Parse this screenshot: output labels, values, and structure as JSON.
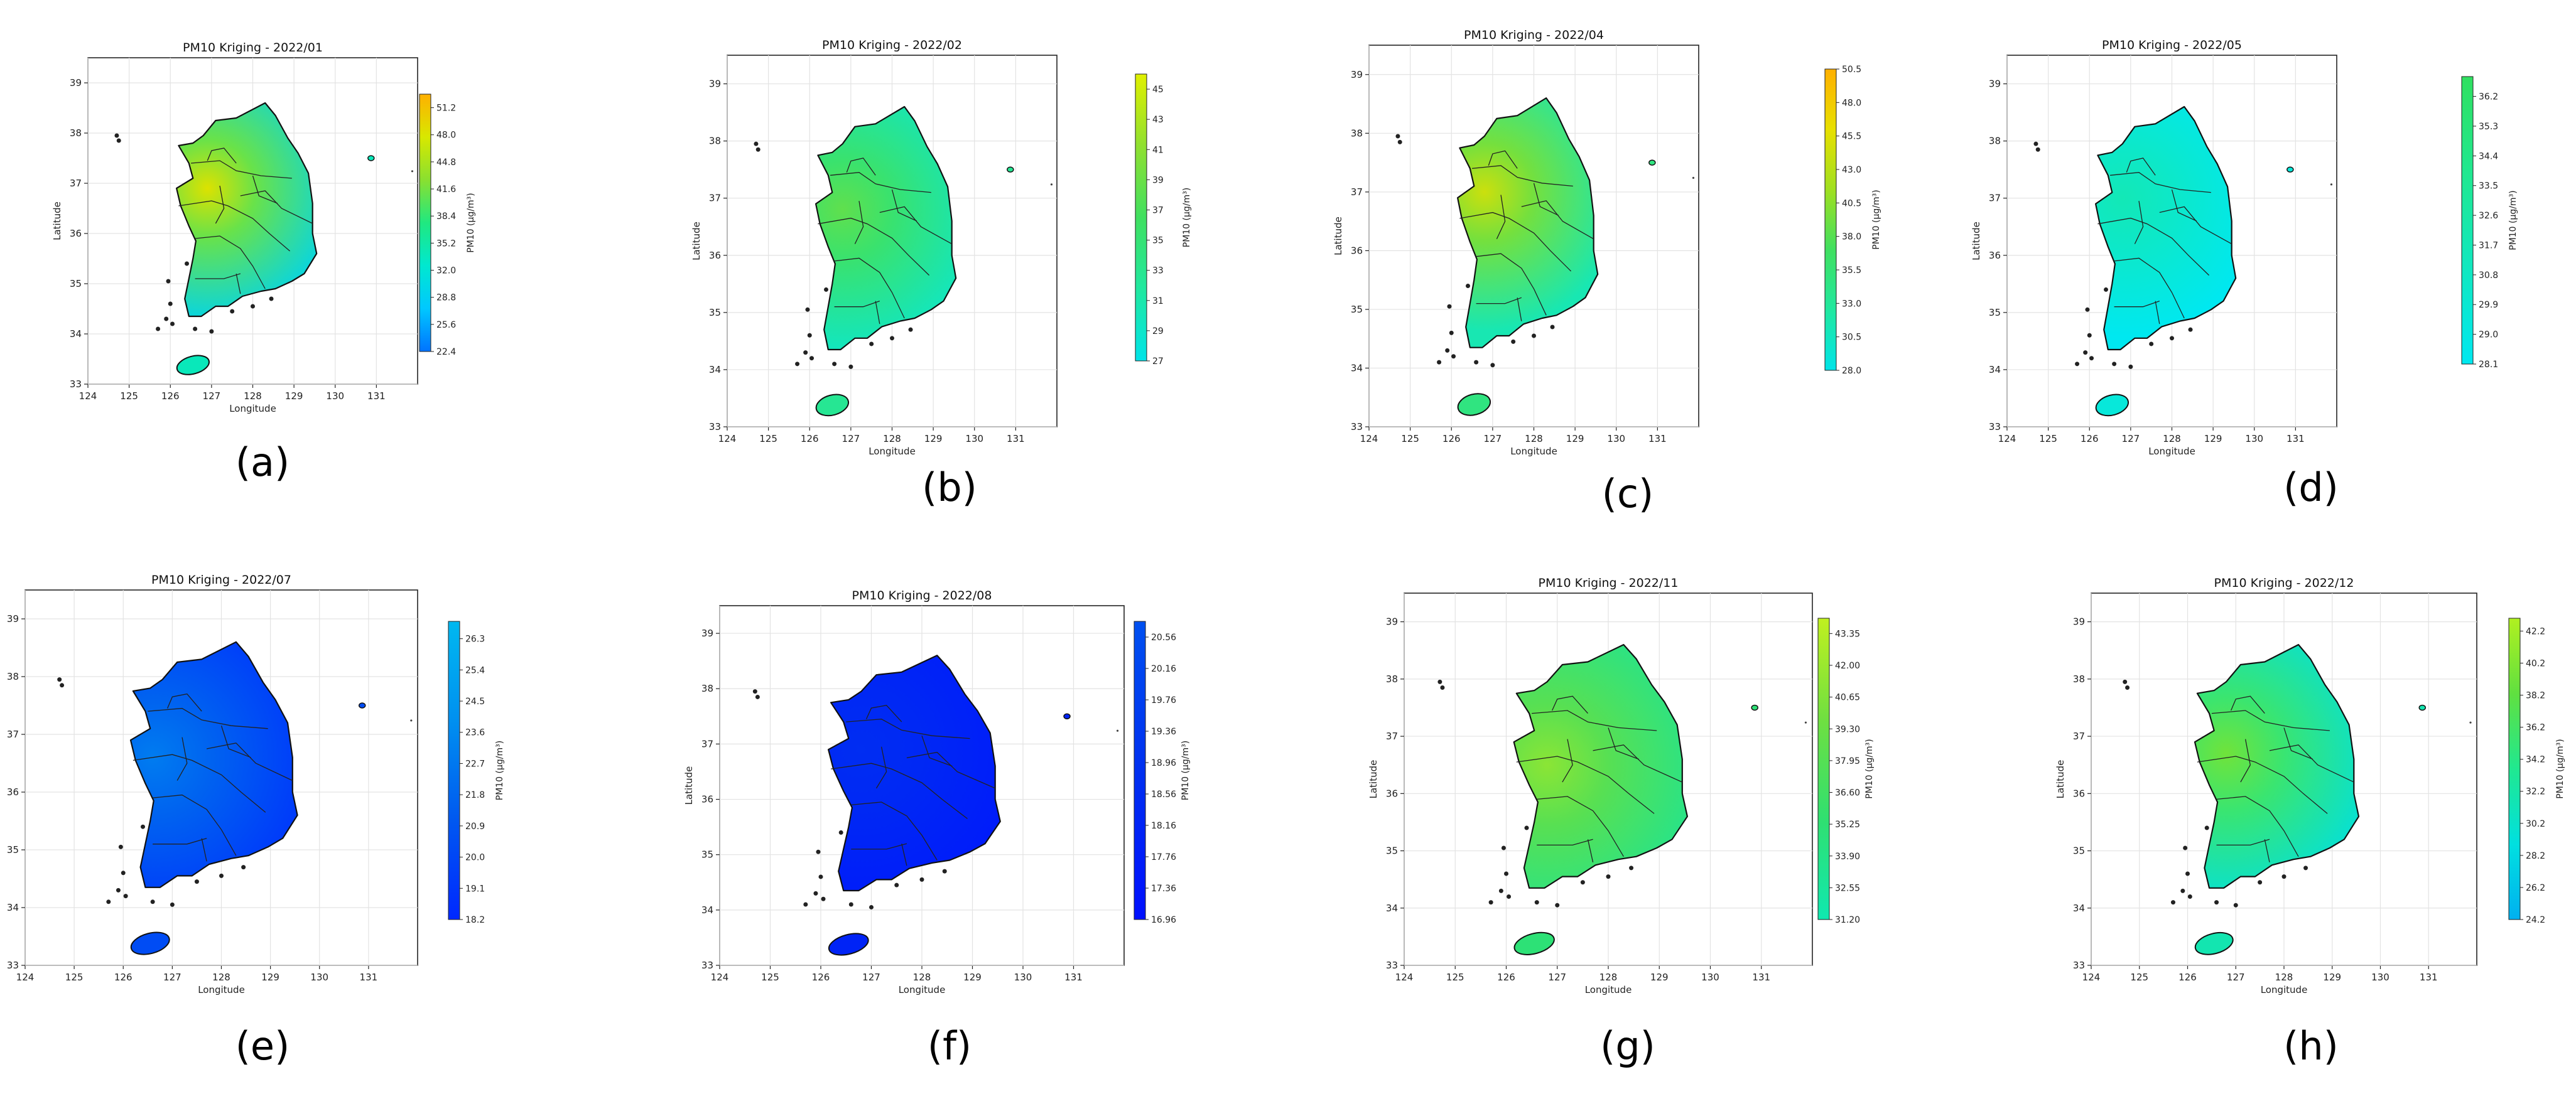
{
  "figure": {
    "panels": [
      {
        "letter": "a",
        "title": "PM10 Kriging - 2022/01"
      },
      {
        "letter": "b",
        "title": "PM10 Kriging - 2022/02"
      },
      {
        "letter": "c",
        "title": "PM10 Kriging - 2022/04"
      },
      {
        "letter": "d",
        "title": "PM10 Kriging - 2022/05"
      },
      {
        "letter": "e",
        "title": "PM10 Kriging - 2022/07"
      },
      {
        "letter": "f",
        "title": "PM10 Kriging - 2022/08"
      },
      {
        "letter": "g",
        "title": "PM10 Kriging - 2022/11"
      },
      {
        "letter": "h",
        "title": "PM10 Kriging - 2022/12"
      }
    ]
  },
  "chart_data": [
    {
      "type": "heatmap",
      "title": "PM10 Kriging - 2022/01",
      "xlabel": "Longitude",
      "ylabel": "Latitude",
      "xticks": [
        "124",
        "125",
        "126",
        "127",
        "128",
        "129",
        "130",
        "131"
      ],
      "yticks": [
        "33",
        "34",
        "35",
        "36",
        "37",
        "38",
        "39"
      ],
      "xlim": [
        124,
        132
      ],
      "ylim": [
        33,
        39.5
      ],
      "grid": true,
      "colorbar_label": "PM10 (µg/m³)",
      "colorbar_ticks": [
        "22.4",
        "25.6",
        "28.8",
        "32.0",
        "35.2",
        "38.4",
        "41.6",
        "44.8",
        "48.0",
        "51.2"
      ],
      "colorbar_range": [
        22.4,
        52.8
      ],
      "colormap": [
        "#0073ff",
        "#00c8ff",
        "#00e8d0",
        "#20e880",
        "#8ae030",
        "#d8e800",
        "#ffb000"
      ],
      "hotspot": {
        "lon": 126.9,
        "lat": 36.9
      },
      "base_level": 0.38,
      "peak_level": 0.85,
      "annotation": "(a)"
    },
    {
      "type": "heatmap",
      "title": "PM10 Kriging - 2022/02",
      "xlabel": "Longitude",
      "ylabel": "Latitude",
      "xticks": [
        "124",
        "125",
        "126",
        "127",
        "128",
        "129",
        "130",
        "131"
      ],
      "yticks": [
        "33",
        "34",
        "35",
        "36",
        "37",
        "38",
        "39"
      ],
      "xlim": [
        124,
        132
      ],
      "ylim": [
        33,
        39.5
      ],
      "grid": true,
      "colorbar_label": "PM10 (µg/m³)",
      "colorbar_ticks": [
        "27",
        "29",
        "31",
        "33",
        "35",
        "37",
        "39",
        "41",
        "43",
        "45"
      ],
      "colorbar_range": [
        27,
        46
      ],
      "colormap": [
        "#00e4e8",
        "#20e8a0",
        "#40e060",
        "#90e030",
        "#e0f000"
      ],
      "hotspot": {
        "lon": 126.8,
        "lat": 36.8
      },
      "base_level": 0.3,
      "peak_level": 0.6,
      "annotation": "(b)"
    },
    {
      "type": "heatmap",
      "title": "PM10 Kriging - 2022/04",
      "xlabel": "Longitude",
      "ylabel": "Latitude",
      "xticks": [
        "124",
        "125",
        "126",
        "127",
        "128",
        "129",
        "130",
        "131"
      ],
      "yticks": [
        "33",
        "34",
        "35",
        "36",
        "37",
        "38",
        "39"
      ],
      "xlim": [
        124,
        132
      ],
      "ylim": [
        33,
        39.5
      ],
      "grid": true,
      "colorbar_label": "PM10 (µg/m³)",
      "colorbar_ticks": [
        "28.0",
        "30.5",
        "33.0",
        "35.5",
        "38.0",
        "40.5",
        "43.0",
        "45.5",
        "48.0",
        "50.5"
      ],
      "colorbar_range": [
        28.0,
        50.5
      ],
      "colormap": [
        "#00e4e8",
        "#20e8a0",
        "#40e060",
        "#a0e020",
        "#e8e000",
        "#ffb000"
      ],
      "hotspot": {
        "lon": 126.8,
        "lat": 37.0
      },
      "base_level": 0.3,
      "peak_level": 0.72,
      "annotation": "(c)"
    },
    {
      "type": "heatmap",
      "title": "PM10 Kriging - 2022/05",
      "xlabel": "Longitude",
      "ylabel": "Latitude",
      "xticks": [
        "124",
        "125",
        "126",
        "127",
        "128",
        "129",
        "130",
        "131"
      ],
      "yticks": [
        "33",
        "34",
        "35",
        "36",
        "37",
        "38",
        "39"
      ],
      "xlim": [
        124,
        132
      ],
      "ylim": [
        33,
        39.5
      ],
      "grid": true,
      "colorbar_label": "PM10 (µg/m³)",
      "colorbar_ticks": [
        "28.1",
        "29.0",
        "29.9",
        "30.8",
        "31.7",
        "32.6",
        "33.5",
        "34.4",
        "35.3",
        "36.2"
      ],
      "colorbar_range": [
        28.1,
        36.8
      ],
      "colormap": [
        "#00e8f0",
        "#10e8c0",
        "#20e890",
        "#30e060"
      ],
      "hotspot": {
        "lon": 126.8,
        "lat": 37.0
      },
      "base_level": 0.15,
      "peak_level": 0.4,
      "annotation": "(d)"
    },
    {
      "type": "heatmap",
      "title": "PM10 Kriging - 2022/07",
      "xlabel": "Longitude",
      "ylabel": "Latitude",
      "xticks": [
        "124",
        "125",
        "126",
        "127",
        "128",
        "129",
        "130",
        "131"
      ],
      "yticks": [
        "33",
        "34",
        "35",
        "36",
        "37",
        "38",
        "39"
      ],
      "xlim": [
        124,
        132
      ],
      "ylim": [
        33,
        39.5
      ],
      "grid": true,
      "colorbar_label": "PM10 (µg/m³)",
      "colorbar_ticks": [
        "18.2",
        "19.1",
        "20.0",
        "20.9",
        "21.8",
        "22.7",
        "23.6",
        "24.5",
        "25.4",
        "26.3"
      ],
      "colorbar_range": [
        18.2,
        26.8
      ],
      "colormap": [
        "#0028ff",
        "#0058f0",
        "#0090f0",
        "#00b8f0"
      ],
      "hotspot": {
        "lon": 126.6,
        "lat": 36.6
      },
      "base_level": 0.25,
      "peak_level": 0.55,
      "annotation": "(e)"
    },
    {
      "type": "heatmap",
      "title": "PM10 Kriging - 2022/08",
      "xlabel": "Longitude",
      "ylabel": "Latitude",
      "xticks": [
        "124",
        "125",
        "126",
        "127",
        "128",
        "129",
        "130",
        "131"
      ],
      "yticks": [
        "33",
        "34",
        "35",
        "36",
        "37",
        "38",
        "39"
      ],
      "xlim": [
        124,
        132
      ],
      "ylim": [
        33,
        39.5
      ],
      "grid": true,
      "colorbar_label": "PM10 (µg/m³)",
      "colorbar_ticks": [
        "16.96",
        "17.36",
        "17.76",
        "18.16",
        "18.56",
        "18.96",
        "19.36",
        "19.76",
        "20.16",
        "20.56"
      ],
      "colorbar_range": [
        16.96,
        20.76
      ],
      "colormap": [
        "#0010ff",
        "#0030f0",
        "#0050f0"
      ],
      "hotspot": {
        "lon": 126.8,
        "lat": 36.9
      },
      "base_level": 0.3,
      "peak_level": 0.45,
      "annotation": "(f)"
    },
    {
      "type": "heatmap",
      "title": "PM10 Kriging - 2022/11",
      "xlabel": "Longitude",
      "ylabel": "Latitude",
      "xticks": [
        "124",
        "125",
        "126",
        "127",
        "128",
        "129",
        "130",
        "131"
      ],
      "yticks": [
        "33",
        "34",
        "35",
        "36",
        "37",
        "38",
        "39"
      ],
      "xlim": [
        124,
        132
      ],
      "ylim": [
        33,
        39.5
      ],
      "grid": true,
      "colorbar_label": "PM10 (µg/m³)",
      "colorbar_ticks": [
        "31.20",
        "32.55",
        "33.90",
        "35.25",
        "36.60",
        "37.95",
        "39.30",
        "40.65",
        "42.00",
        "43.35"
      ],
      "colorbar_range": [
        31.2,
        44.0
      ],
      "colormap": [
        "#10e8b0",
        "#30e070",
        "#70e040",
        "#c0f020"
      ],
      "hotspot": {
        "lon": 126.8,
        "lat": 36.5
      },
      "base_level": 0.3,
      "peak_level": 0.78,
      "annotation": "(g)"
    },
    {
      "type": "heatmap",
      "title": "PM10 Kriging - 2022/12",
      "xlabel": "Longitude",
      "ylabel": "Latitude",
      "xticks": [
        "124",
        "125",
        "126",
        "127",
        "128",
        "129",
        "130",
        "131"
      ],
      "yticks": [
        "33",
        "34",
        "35",
        "36",
        "37",
        "38",
        "39"
      ],
      "xlim": [
        124,
        132
      ],
      "ylim": [
        33,
        39.5
      ],
      "grid": true,
      "colorbar_label": "PM10 (µg/m³)",
      "colorbar_ticks": [
        "24.2",
        "26.2",
        "28.2",
        "30.2",
        "32.2",
        "34.2",
        "36.2",
        "38.2",
        "40.2",
        "42.2"
      ],
      "colorbar_range": [
        24.2,
        43.0
      ],
      "colormap": [
        "#00b0f0",
        "#00e0e0",
        "#20e890",
        "#60e040",
        "#b0f020"
      ],
      "hotspot": {
        "lon": 126.8,
        "lat": 36.7
      },
      "base_level": 0.4,
      "peak_level": 0.8,
      "annotation": "(h)"
    }
  ]
}
